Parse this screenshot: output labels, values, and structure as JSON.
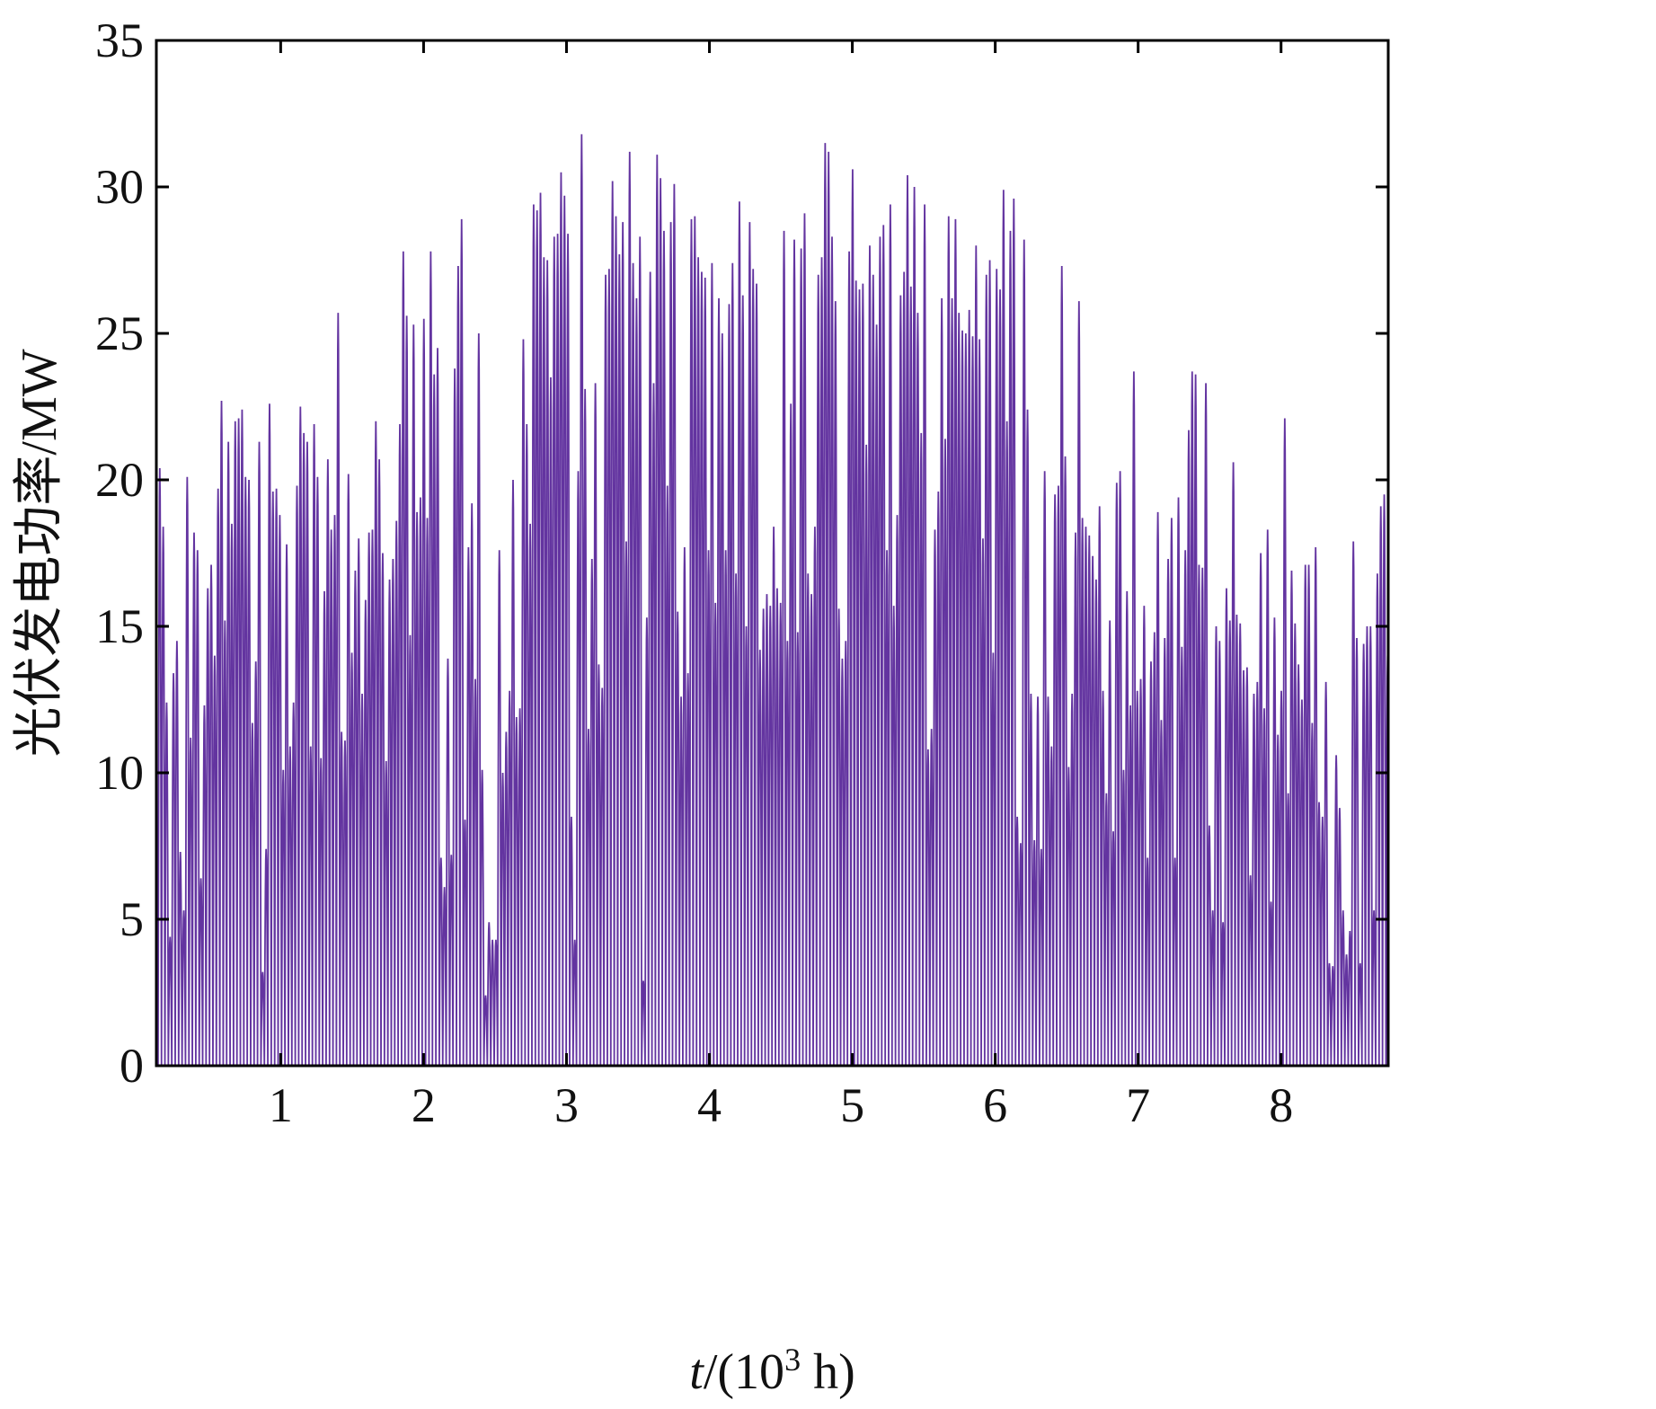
{
  "chart_data": {
    "type": "area",
    "title": "",
    "xlabel_parts": {
      "italic": "t",
      "prefix": "/(10",
      "superscript": "3",
      "suffix": " h)"
    },
    "ylabel_parts": {
      "cjk": "光伏发电功率",
      "unit": "/MW"
    },
    "xlim": [
      0.13,
      8.75
    ],
    "ylim": [
      0,
      35
    ],
    "xticks": [
      1,
      2,
      3,
      4,
      5,
      6,
      7,
      8
    ],
    "yticks": [
      0,
      5,
      10,
      15,
      20,
      25,
      30,
      35
    ],
    "grid": false,
    "legend": "none",
    "series": [
      {
        "color": "#6334a0",
        "x_unit": "10^3 h",
        "x_start": 0.13,
        "x_step": 0.024,
        "daily_peaks": [
          8.1,
          20.4,
          18.4,
          12.4,
          4.4,
          13.4,
          14.5,
          7.3,
          5.3,
          20.1,
          11.2,
          18.2,
          17.6,
          6.4,
          12.3,
          16.3,
          17.1,
          14.0,
          19.7,
          22.7,
          15.2,
          21.3,
          18.5,
          22.0,
          22.1,
          22.4,
          20.1,
          20.0,
          11.7,
          13.8,
          21.3,
          3.2,
          7.4,
          22.6,
          19.6,
          19.7,
          18.8,
          10.1,
          17.8,
          10.9,
          12.4,
          19.8,
          22.5,
          21.6,
          21.3,
          10.9,
          21.9,
          20.1,
          10.5,
          16.2,
          20.7,
          18.3,
          18.8,
          25.7,
          11.4,
          11.1,
          20.2,
          14.1,
          16.9,
          18.0,
          12.7,
          15.9,
          18.2,
          18.3,
          22.0,
          20.7,
          17.5,
          10.4,
          16.6,
          17.3,
          18.6,
          21.9,
          27.8,
          25.6,
          14.7,
          25.3,
          18.9,
          19.4,
          25.5,
          18.7,
          27.8,
          23.6,
          24.5,
          7.1,
          6.1,
          13.9,
          7.2,
          23.8,
          27.3,
          28.9,
          8.4,
          17.7,
          19.2,
          13.2,
          25.0,
          10.1,
          2.4,
          4.9,
          4.3,
          4.3,
          17.6,
          10.0,
          11.4,
          12.8,
          20.0,
          11.9,
          12.2,
          24.8,
          21.9,
          18.5,
          29.4,
          29.2,
          29.8,
          27.6,
          27.5,
          23.5,
          28.3,
          28.4,
          30.5,
          29.7,
          28.4,
          8.5,
          4.3,
          20.3,
          31.8,
          23.1,
          11.5,
          17.3,
          23.3,
          13.7,
          12.9,
          27.0,
          27.2,
          30.2,
          29.0,
          27.7,
          28.8,
          17.9,
          31.2,
          27.4,
          26.2,
          28.3,
          2.9,
          15.3,
          27.1,
          23.3,
          31.1,
          30.3,
          28.5,
          19.8,
          28.8,
          30.1,
          15.5,
          12.6,
          17.7,
          13.4,
          28.9,
          29.0,
          27.6,
          27.1,
          26.9,
          17.6,
          27.4,
          15.8,
          26.2,
          25.0,
          17.6,
          26.0,
          27.4,
          16.8,
          29.5,
          26.3,
          15.0,
          28.8,
          27.2,
          26.7,
          14.2,
          15.6,
          16.1,
          15.7,
          18.4,
          16.3,
          15.8,
          28.5,
          14.5,
          22.6,
          28.2,
          14.8,
          27.9,
          29.1,
          16.8,
          16.1,
          18.4,
          27.0,
          27.6,
          31.5,
          31.2,
          28.3,
          26.1,
          15.6,
          13.9,
          14.5,
          27.8,
          30.6,
          26.8,
          26.5,
          26.7,
          21.2,
          28.0,
          27.0,
          25.3,
          28.3,
          28.7,
          17.6,
          29.4,
          15.7,
          18.8,
          26.3,
          27.1,
          30.4,
          26.6,
          30.0,
          25.7,
          21.6,
          29.4,
          10.8,
          11.5,
          18.3,
          19.6,
          26.2,
          21.4,
          29.0,
          26.2,
          28.9,
          25.7,
          25.1,
          25.0,
          25.8,
          24.9,
          28.0,
          24.8,
          18.0,
          27.0,
          27.5,
          14.1,
          27.2,
          26.5,
          29.9,
          22.0,
          28.5,
          29.6,
          8.5,
          7.6,
          28.2,
          22.4,
          12.7,
          7.7,
          12.6,
          7.4,
          20.3,
          12.6,
          10.9,
          19.5,
          19.8,
          27.3,
          20.8,
          10.2,
          12.7,
          18.2,
          26.1,
          18.7,
          18.4,
          18.1,
          17.4,
          16.6,
          19.1,
          12.8,
          9.3,
          15.2,
          8.0,
          19.9,
          20.3,
          10.1,
          16.2,
          12.3,
          23.7,
          12.8,
          13.2,
          15.7,
          7.1,
          13.8,
          14.8,
          18.9,
          11.8,
          14.6,
          17.3,
          18.7,
          7.1,
          19.4,
          14.3,
          17.6,
          21.7,
          23.7,
          23.6,
          17.1,
          17.0,
          23.3,
          8.2,
          5.3,
          15.0,
          14.5,
          4.9,
          16.3,
          15.2,
          20.6,
          15.4,
          15.1,
          13.5,
          13.6,
          6.5,
          12.7,
          13.1,
          17.5,
          12.2,
          18.3,
          5.6,
          15.3,
          11.3,
          12.8,
          22.1,
          9.3,
          16.9,
          15.1,
          13.7,
          12.5,
          17.1,
          17.1,
          11.7,
          17.7,
          9.0,
          8.5,
          13.1,
          3.5,
          3.4,
          10.6,
          8.8,
          5.3,
          3.8,
          4.6,
          17.9,
          14.6,
          3.5,
          14.4,
          15.0,
          15.0,
          5.3,
          16.8,
          19.1,
          19.5,
          14.0,
          15.7,
          15.6,
          16.5,
          5.1,
          19.3,
          19.8
        ]
      }
    ]
  }
}
